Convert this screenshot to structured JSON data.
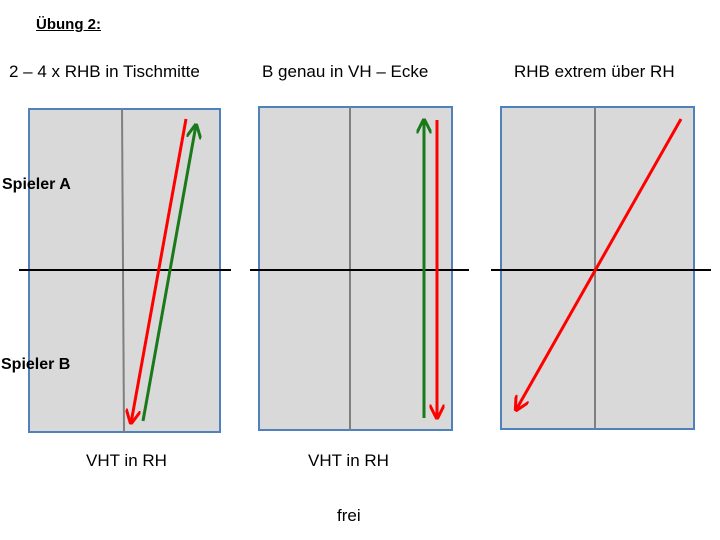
{
  "title": "Übung 2:",
  "panels": [
    {
      "heading": "2 – 4 x RHB in Tischmitte",
      "caption": "VHT in RH"
    },
    {
      "heading": "B genau in VH – Ecke",
      "caption": "VHT in RH"
    },
    {
      "heading": "RHB extrem über RH",
      "caption": "frei"
    }
  ],
  "players": {
    "top": "Spieler A",
    "bottom": "Spieler B"
  },
  "colors": {
    "table_fill": "#d9d9d9",
    "table_border": "#4f81bd",
    "center_line": "#7f7f7f",
    "net": "#000000",
    "arrow_red": "#ff0000",
    "arrow_green": "#1a7a1a"
  }
}
